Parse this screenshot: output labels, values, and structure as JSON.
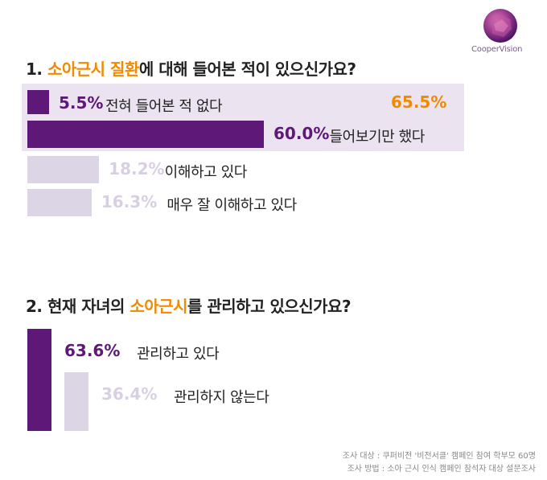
{
  "brand": {
    "logo_text": "CooperVision",
    "colors": {
      "purple": "#5e1878",
      "lavender": "#dcd5e6",
      "orange": "#f08a00",
      "panel": "#ebe4f0"
    }
  },
  "question1": {
    "prefix": "1. ",
    "highlight": "소아근시 질환",
    "suffix": "에 대해 들어본 적이 있으신가요?",
    "callout": "65.5%"
  },
  "question2": {
    "prefix": "2. 현재 자녀의 ",
    "highlight": "소아근시",
    "suffix": "를 관리하고 있으신가요?"
  },
  "footnotes": [
    "조사 대상 : 쿠퍼비전 '비전서클' 캠페인 참여 학부모 60명",
    "조사 방법 : 소아 근시 인식 캠페인 참석자 대상 설문조사"
  ],
  "chart_data": [
    {
      "type": "bar",
      "orientation": "horizontal",
      "categories": [
        "전혀 들어본 적 없다",
        "들어보기만 했다",
        "이해하고 있다",
        "매우 잘 이해하고 있다"
      ],
      "values": [
        5.5,
        60.0,
        18.2,
        16.3
      ],
      "value_labels": [
        "5.5%",
        "60.0%",
        "18.2%",
        "16.3%"
      ],
      "colors": [
        "#5e1878",
        "#5e1878",
        "#dcd5e6",
        "#dcd5e6"
      ],
      "xlim": [
        0,
        100
      ]
    },
    {
      "type": "bar",
      "orientation": "vertical",
      "categories": [
        "관리하고 있다",
        "관리하지 않는다"
      ],
      "values": [
        63.6,
        36.4
      ],
      "value_labels": [
        "63.6%",
        "36.4%"
      ],
      "colors": [
        "#5e1878",
        "#dcd5e6"
      ],
      "ylim": [
        0,
        100
      ]
    }
  ]
}
